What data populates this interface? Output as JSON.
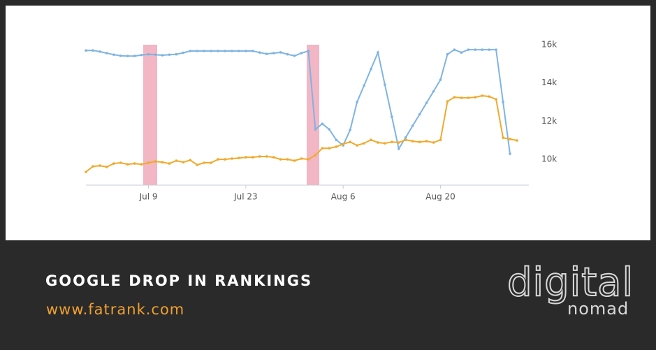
{
  "chart_data": {
    "type": "line",
    "categories": [
      null,
      null,
      null,
      null,
      null,
      null,
      null,
      null,
      null,
      "Jul 9",
      null,
      null,
      null,
      null,
      null,
      null,
      null,
      null,
      null,
      null,
      null,
      null,
      null,
      "Jul 23",
      null,
      null,
      null,
      null,
      null,
      null,
      null,
      null,
      null,
      null,
      null,
      null,
      null,
      "Aug 6",
      null,
      null,
      null,
      null,
      null,
      null,
      null,
      null,
      null,
      null,
      null,
      null,
      null,
      "Aug 20",
      null,
      null,
      null,
      null,
      null,
      null,
      null,
      null,
      null,
      null,
      null
    ],
    "series": [
      {
        "color": "#7fb4e2",
        "values": [
          15700,
          15700,
          15640,
          15560,
          15480,
          15420,
          15410,
          15410,
          15460,
          15500,
          15480,
          15450,
          15480,
          15500,
          15580,
          15670,
          15670,
          15670,
          15670,
          15670,
          15670,
          15670,
          15670,
          15670,
          15670,
          15590,
          15520,
          15560,
          15600,
          15500,
          15420,
          15560,
          15670,
          11570,
          11860,
          11570,
          11020,
          10730,
          11540,
          13000,
          13860,
          14730,
          15590,
          13910,
          12230,
          10550,
          11150,
          11760,
          12360,
          12960,
          13560,
          14170,
          15500,
          15740,
          15590,
          15740,
          15740,
          15740,
          15740,
          15740,
          13000,
          10290,
          null
        ]
      },
      {
        "color": "#f0aa2c",
        "values": [
          9340,
          9630,
          9670,
          9600,
          9780,
          9820,
          9740,
          9780,
          9740,
          9820,
          9890,
          9850,
          9780,
          9930,
          9850,
          9960,
          9710,
          9820,
          9820,
          10000,
          10000,
          10040,
          10070,
          10110,
          10110,
          10150,
          10150,
          10110,
          10000,
          10000,
          9930,
          10040,
          10000,
          10220,
          10580,
          10580,
          10660,
          10800,
          10910,
          10730,
          10840,
          11020,
          10880,
          10840,
          10910,
          10880,
          11020,
          10950,
          10910,
          10950,
          10880,
          11020,
          13030,
          13250,
          13220,
          13220,
          13250,
          13330,
          13290,
          13140,
          11130,
          11060,
          10990
        ]
      }
    ],
    "ylim": [
      8650,
      16330
    ],
    "yticks": [
      {
        "value": 10000,
        "label": "10k"
      },
      {
        "value": 12000,
        "label": "12k"
      },
      {
        "value": 14000,
        "label": "14k"
      },
      {
        "value": 16000,
        "label": "16k"
      }
    ],
    "grid": false
  },
  "caption": {
    "title": "GOOGLE DROP IN RANKINGS",
    "url": "www.fatrank.com"
  },
  "logo": {
    "top": "digital",
    "bottom": "nomad"
  }
}
